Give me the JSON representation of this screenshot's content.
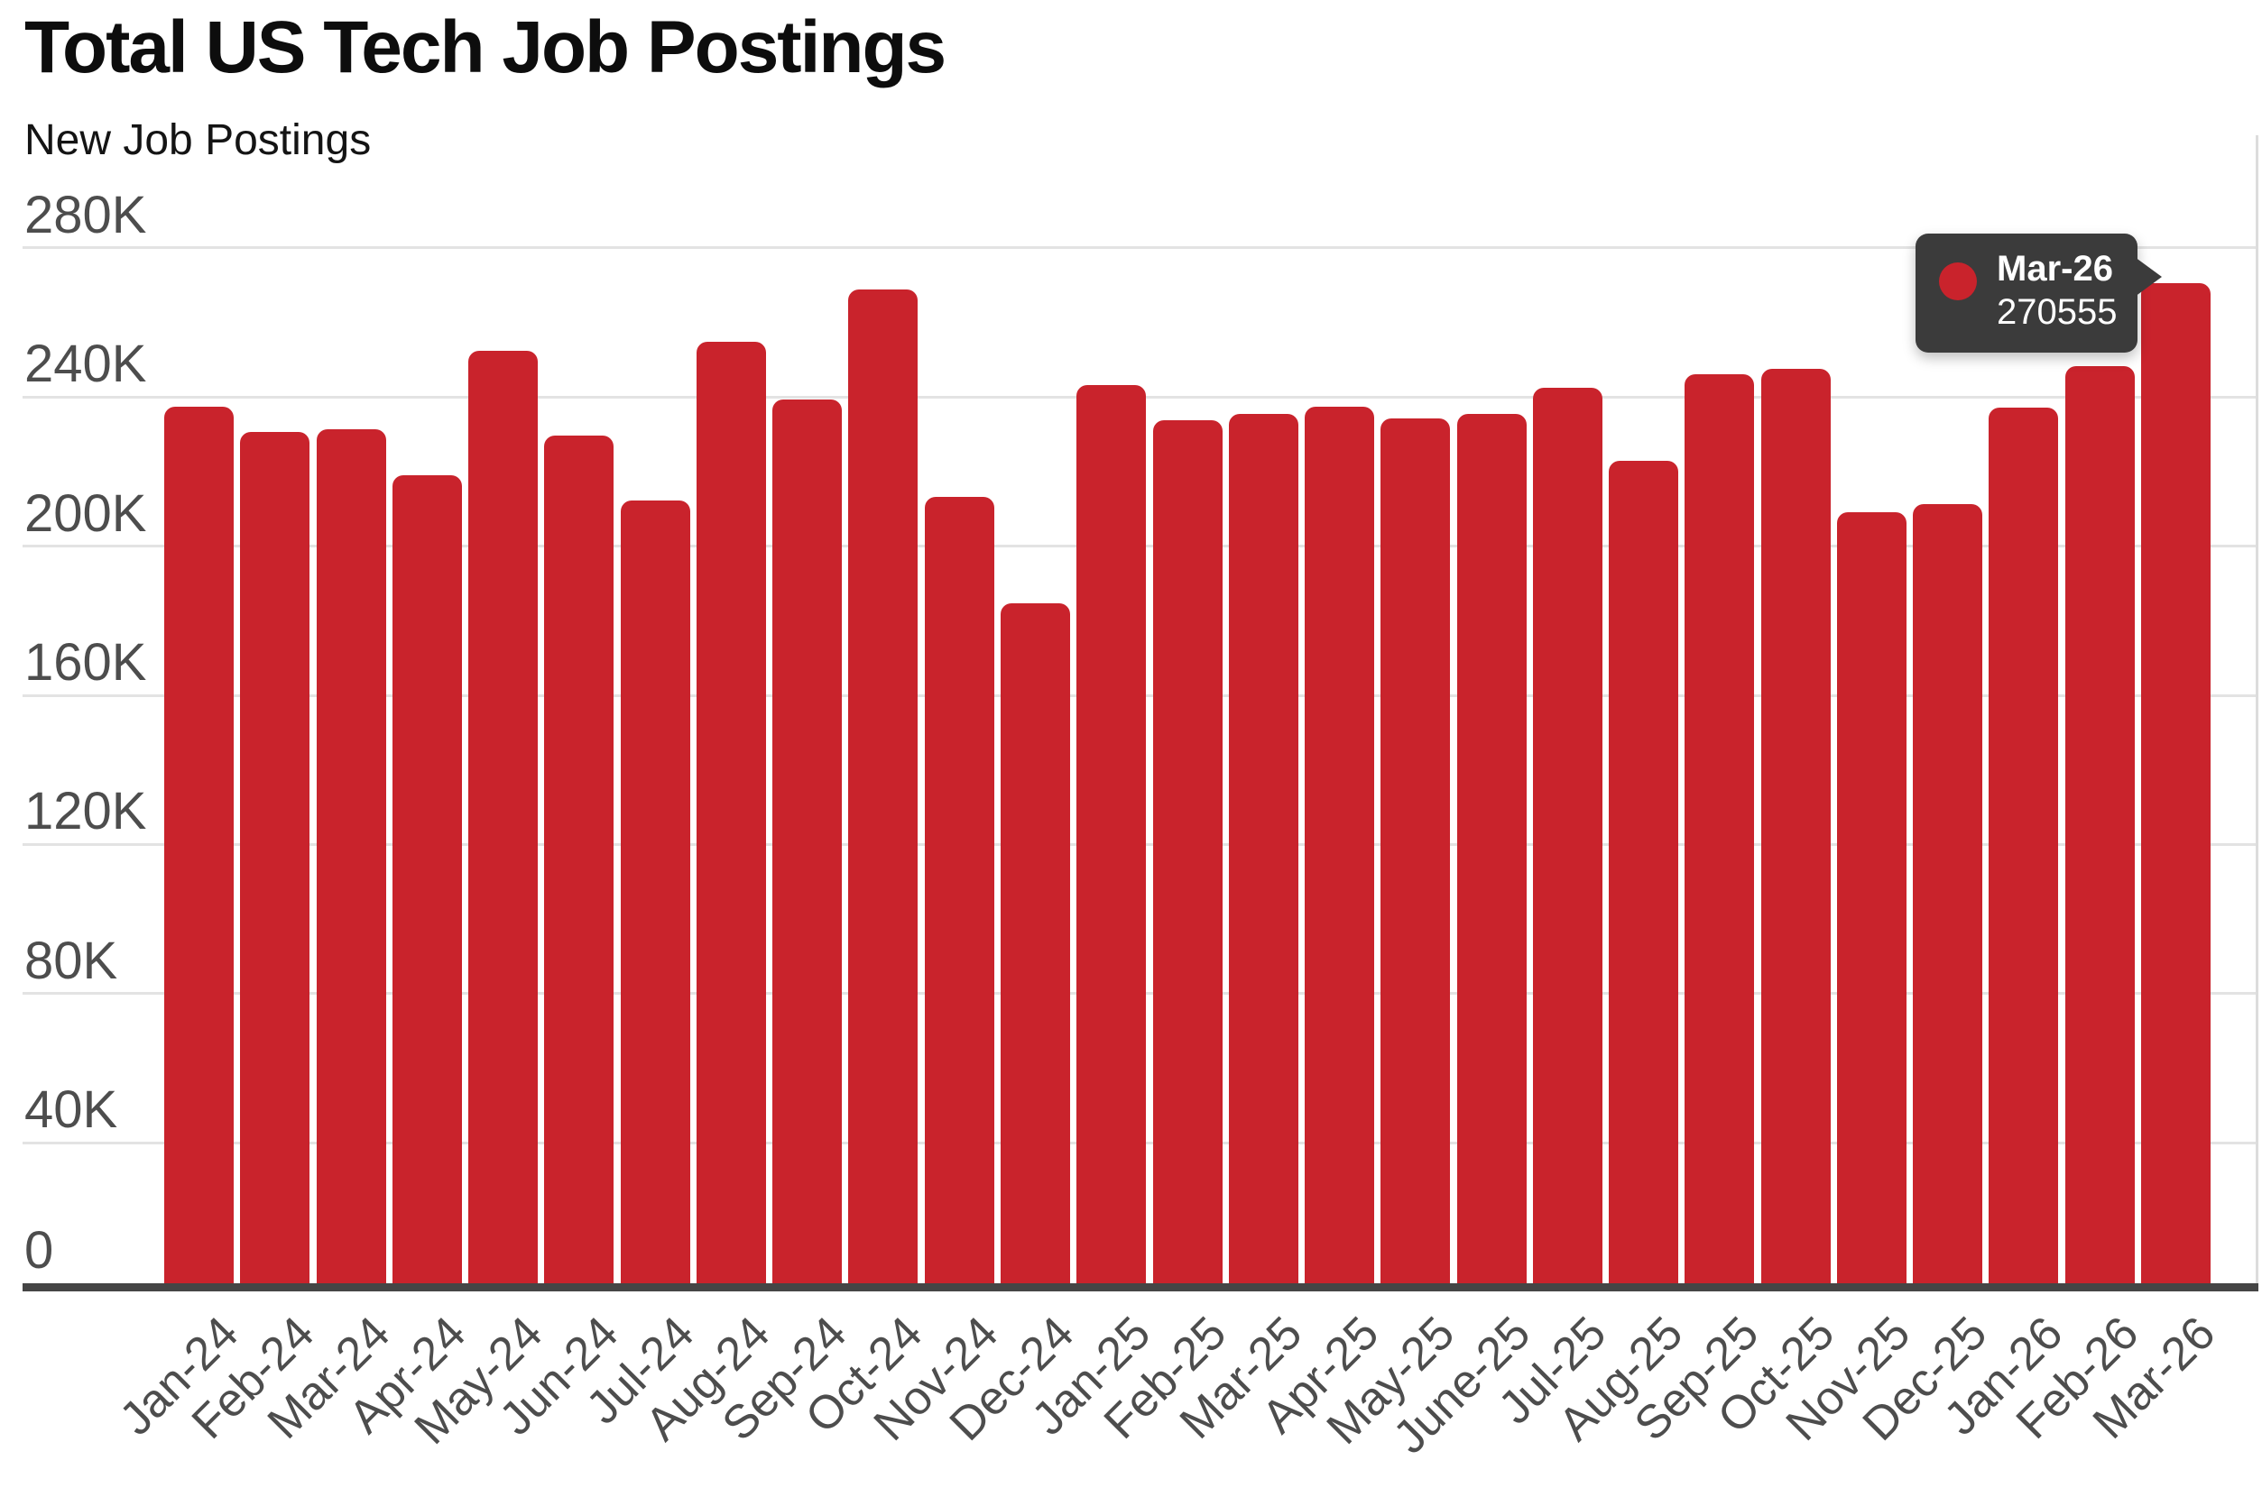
{
  "title": "Total US Tech Job Postings",
  "subtitle": "New Job Postings",
  "tooltip": {
    "label": "Mar-26",
    "value": "270555"
  },
  "colors": {
    "bar": "#c9232c",
    "grid": "#e3e3e3",
    "axis_line": "#454545",
    "tick_text": "#4d4d4d",
    "title_text": "#0d0d0d",
    "tooltip_bg": "#3b3b3b",
    "tooltip_text": "#ffffff"
  },
  "y_axis": {
    "ticks": [
      "280K",
      "240K",
      "200K",
      "160K",
      "120K",
      "80K",
      "40K",
      "0"
    ],
    "max": 280000
  },
  "chart_data": {
    "type": "bar",
    "title": "Total US Tech Job Postings",
    "ylabel": "New Job Postings",
    "xlabel": "",
    "ylim": [
      0,
      280000
    ],
    "grid": "horizontal",
    "legend": "none",
    "categories": [
      "Jan-24",
      "Feb-24",
      "Mar-24",
      "Apr-24",
      "May-24",
      "Jun-24",
      "Jul-24",
      "Aug-24",
      "Sep-24",
      "Oct-24",
      "Nov-24",
      "Dec-24",
      "Jan-25",
      "Feb-25",
      "Mar-25",
      "Apr-25",
      "May-25",
      "June-25",
      "Jul-25",
      "Aug-25",
      "Sep-25",
      "Oct-25",
      "Nov-25",
      "Dec-25",
      "Jan-26",
      "Feb-26",
      "Mar-26"
    ],
    "values": [
      237500,
      230600,
      231300,
      219100,
      252400,
      229800,
      212200,
      254800,
      239300,
      268900,
      213300,
      184600,
      243300,
      233700,
      235600,
      237500,
      234200,
      235400,
      242600,
      222800,
      246200,
      247700,
      209200,
      211300,
      237100,
      248400,
      270555
    ],
    "highlight": {
      "category": "Mar-26",
      "value": 270555,
      "tooltip_shown": true
    }
  }
}
